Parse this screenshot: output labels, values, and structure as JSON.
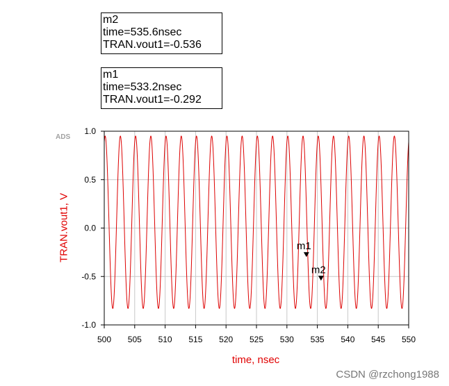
{
  "markers": [
    {
      "name": "m2",
      "time_line": "time=535.6nsec",
      "value_line": "TRAN.vout1=-0.536",
      "time": 535.6,
      "value": -0.536
    },
    {
      "name": "m1",
      "time_line": "time=533.2nsec",
      "value_line": "TRAN.vout1=-0.292",
      "time": 533.2,
      "value": -0.292
    }
  ],
  "ads_label": "ADS",
  "watermark": "CSDN @rzchong1988",
  "colors": {
    "trace": "#dd0000",
    "axis_title": "#e00000",
    "grid": "#c8c8c8"
  },
  "chart_data": {
    "type": "line",
    "xlabel": "time, nsec",
    "ylabel": "TRAN.vout1, V",
    "xlim": [
      500,
      550
    ],
    "ylim": [
      -1.0,
      1.0
    ],
    "x_ticks": [
      500,
      505,
      510,
      515,
      520,
      525,
      530,
      535,
      540,
      545,
      550
    ],
    "y_ticks": [
      1.0,
      0.5,
      0.0,
      -0.5,
      -1.0
    ],
    "x_tick_labels": [
      "500",
      "505",
      "510",
      "515",
      "520",
      "525",
      "530",
      "535",
      "540",
      "545",
      "550"
    ],
    "y_tick_labels": [
      "1.0",
      "0.5",
      "0.0",
      "-0.5",
      "-1.0"
    ],
    "grid": true,
    "series": [
      {
        "waveform": "sine",
        "frequency_ghz": 0.4,
        "amplitude": 0.89,
        "offset": 0.06,
        "phase_rad": 1.2,
        "t_start": 500,
        "t_end": 550,
        "color": "#dd0000"
      }
    ]
  }
}
